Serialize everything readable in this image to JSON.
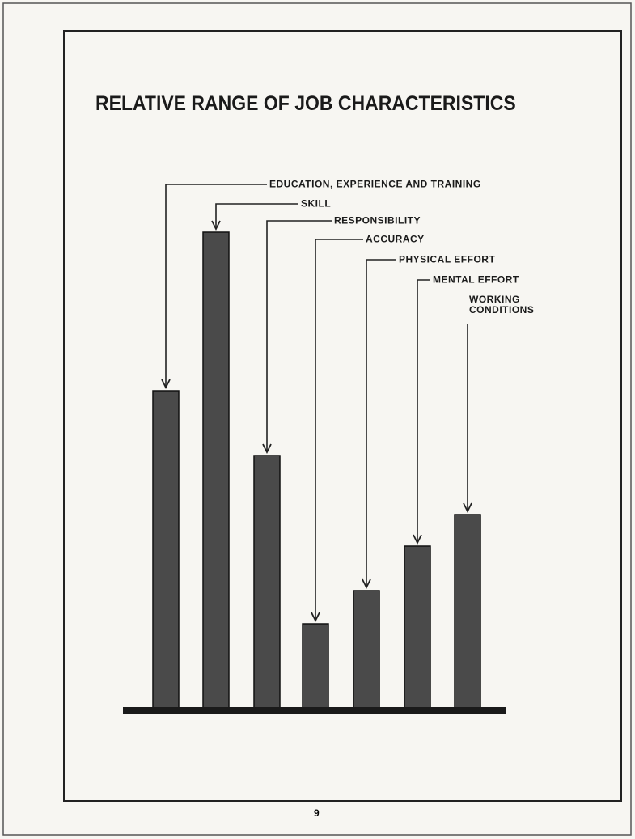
{
  "chart_data": {
    "type": "bar",
    "title": "RELATIVE RANGE OF JOB CHARACTERISTICS",
    "categories": [
      "EDUCATION, EXPERIENCE AND TRAINING",
      "SKILL",
      "RESPONSIBILITY",
      "ACCURACY",
      "PHYSICAL EFFORT",
      "MENTAL EFFORT",
      "WORKING CONDITIONS"
    ],
    "values": [
      392,
      588,
      312,
      104,
      145,
      200,
      239
    ],
    "color": "#4a4a4a",
    "ylim": [
      0,
      600
    ]
  },
  "page_number": "9"
}
